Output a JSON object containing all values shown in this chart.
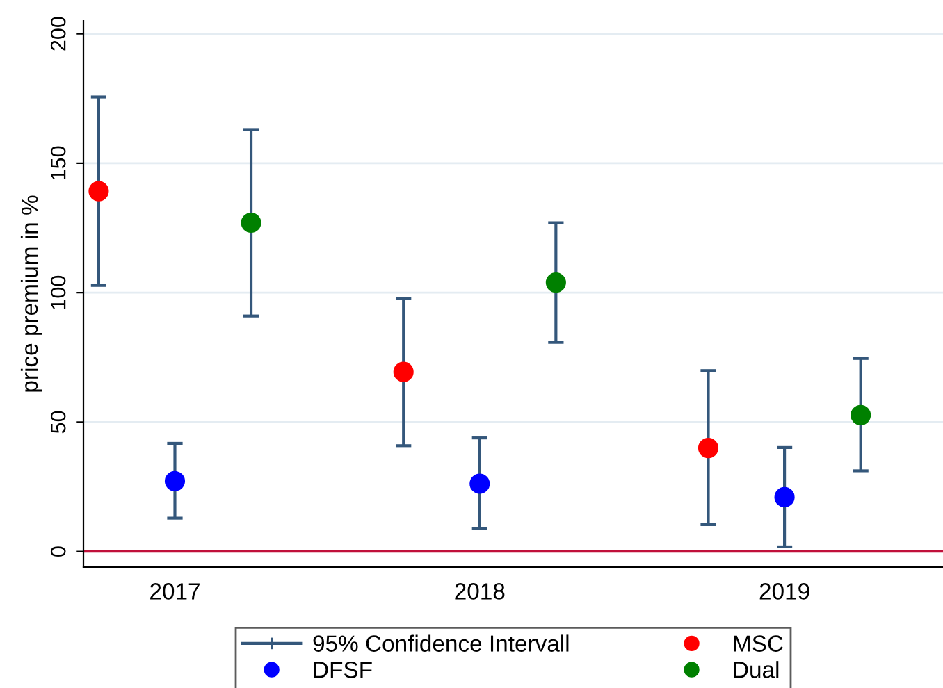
{
  "chart_data": {
    "type": "scatter",
    "ylabel": "price premium in %",
    "series": [
      {
        "name": "MSC",
        "color": "#ff0000",
        "x": [
          2016.75,
          2017.75,
          2018.75
        ],
        "values": [
          139.2,
          69.4,
          40
        ],
        "errors": [
          [
            102.8,
            175.6
          ],
          [
            40.9,
            97.8
          ],
          [
            10.4,
            69.9
          ]
        ]
      },
      {
        "name": "DFSF",
        "color": "#0000ff",
        "x": [
          2017,
          2018,
          2019
        ],
        "values": [
          27.2,
          26.2,
          21
        ],
        "errors": [
          [
            12.9,
            41.8
          ],
          [
            9.0,
            43.9
          ],
          [
            1.8,
            40.2
          ]
        ]
      },
      {
        "name": "Dual",
        "color": "#008000",
        "x": [
          2017.25,
          2018.25,
          2019.25
        ],
        "values": [
          127,
          103.9,
          52.7
        ],
        "errors": [
          [
            91,
            163
          ],
          [
            80.8,
            127
          ],
          [
            31.2,
            74.6
          ]
        ]
      }
    ],
    "annotations": [
      "95% Confidence Intervall"
    ],
    "xlim": [
      2016.7,
      2019.52
    ],
    "xticks": [
      2017,
      2018,
      2019
    ],
    "ylim": [
      -6,
      205
    ],
    "yticks": [
      0,
      50,
      100,
      150,
      200
    ],
    "ref_lines": [
      {
        "axis": "y",
        "value": 0,
        "color": "#c0103a"
      }
    ],
    "grid": "y",
    "legend": "bottom",
    "marker": "circle"
  }
}
